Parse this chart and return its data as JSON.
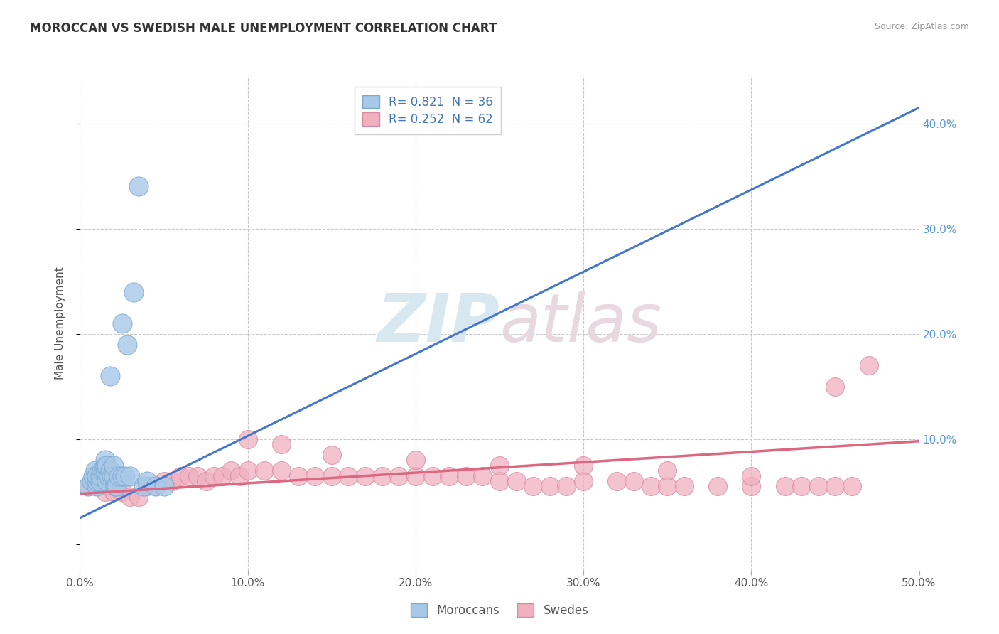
{
  "title": "MOROCCAN VS SWEDISH MALE UNEMPLOYMENT CORRELATION CHART",
  "source": "Source: ZipAtlas.com",
  "ylabel": "Male Unemployment",
  "xlim": [
    0.0,
    0.5
  ],
  "ylim": [
    -0.025,
    0.445
  ],
  "xticks": [
    0.0,
    0.1,
    0.2,
    0.3,
    0.4,
    0.5
  ],
  "xticklabels": [
    "0.0%",
    "10.0%",
    "20.0%",
    "30.0%",
    "40.0%",
    "50.0%"
  ],
  "yticks_right": [
    0.0,
    0.1,
    0.2,
    0.3,
    0.4
  ],
  "yticklabels_right": [
    "",
    "10.0%",
    "20.0%",
    "30.0%",
    "40.0%"
  ],
  "background_color": "#ffffff",
  "grid_color": "#c8c8c8",
  "moroccan_color": "#a8c8e8",
  "moroccan_edge_color": "#7aaad0",
  "swedish_color": "#f0b0c0",
  "swedish_edge_color": "#d888a0",
  "moroccan_line_color": "#4477cc",
  "swedish_line_color": "#dd6680",
  "R_moroccan": 0.821,
  "N_moroccan": 36,
  "R_swedish": 0.252,
  "N_swedish": 62,
  "legend_labels": [
    "Moroccans",
    "Swedes"
  ],
  "watermark_zip": "ZIP",
  "watermark_atlas": "atlas",
  "moroccan_line_x0": 0.0,
  "moroccan_line_y0": 0.025,
  "moroccan_line_x1": 0.5,
  "moroccan_line_y1": 0.415,
  "swedish_line_x0": 0.0,
  "swedish_line_y0": 0.048,
  "swedish_line_x1": 0.5,
  "swedish_line_y1": 0.098,
  "moroccan_scatter_x": [
    0.005,
    0.007,
    0.008,
    0.009,
    0.01,
    0.01,
    0.01,
    0.012,
    0.012,
    0.013,
    0.014,
    0.015,
    0.015,
    0.015,
    0.016,
    0.016,
    0.017,
    0.018,
    0.018,
    0.019,
    0.02,
    0.02,
    0.021,
    0.022,
    0.023,
    0.025,
    0.025,
    0.027,
    0.028,
    0.03,
    0.032,
    0.035,
    0.038,
    0.04,
    0.045,
    0.05
  ],
  "moroccan_scatter_y": [
    0.055,
    0.06,
    0.065,
    0.07,
    0.055,
    0.06,
    0.065,
    0.06,
    0.065,
    0.07,
    0.07,
    0.07,
    0.075,
    0.08,
    0.06,
    0.075,
    0.065,
    0.07,
    0.16,
    0.065,
    0.065,
    0.075,
    0.055,
    0.055,
    0.065,
    0.065,
    0.21,
    0.065,
    0.19,
    0.065,
    0.24,
    0.34,
    0.055,
    0.06,
    0.055,
    0.055
  ],
  "swedish_scatter_x": [
    0.005,
    0.01,
    0.015,
    0.02,
    0.025,
    0.03,
    0.035,
    0.04,
    0.045,
    0.05,
    0.055,
    0.06,
    0.065,
    0.07,
    0.075,
    0.08,
    0.085,
    0.09,
    0.095,
    0.1,
    0.11,
    0.12,
    0.13,
    0.14,
    0.15,
    0.16,
    0.17,
    0.18,
    0.19,
    0.2,
    0.21,
    0.22,
    0.23,
    0.24,
    0.25,
    0.26,
    0.27,
    0.28,
    0.29,
    0.3,
    0.32,
    0.33,
    0.34,
    0.35,
    0.36,
    0.38,
    0.4,
    0.42,
    0.43,
    0.44,
    0.45,
    0.46,
    0.1,
    0.12,
    0.15,
    0.2,
    0.25,
    0.3,
    0.35,
    0.4,
    0.45,
    0.47
  ],
  "swedish_scatter_y": [
    0.055,
    0.055,
    0.05,
    0.05,
    0.05,
    0.045,
    0.045,
    0.055,
    0.055,
    0.06,
    0.06,
    0.065,
    0.065,
    0.065,
    0.06,
    0.065,
    0.065,
    0.07,
    0.065,
    0.07,
    0.07,
    0.07,
    0.065,
    0.065,
    0.065,
    0.065,
    0.065,
    0.065,
    0.065,
    0.065,
    0.065,
    0.065,
    0.065,
    0.065,
    0.06,
    0.06,
    0.055,
    0.055,
    0.055,
    0.06,
    0.06,
    0.06,
    0.055,
    0.055,
    0.055,
    0.055,
    0.055,
    0.055,
    0.055,
    0.055,
    0.055,
    0.055,
    0.1,
    0.095,
    0.085,
    0.08,
    0.075,
    0.075,
    0.07,
    0.065,
    0.15,
    0.17
  ]
}
